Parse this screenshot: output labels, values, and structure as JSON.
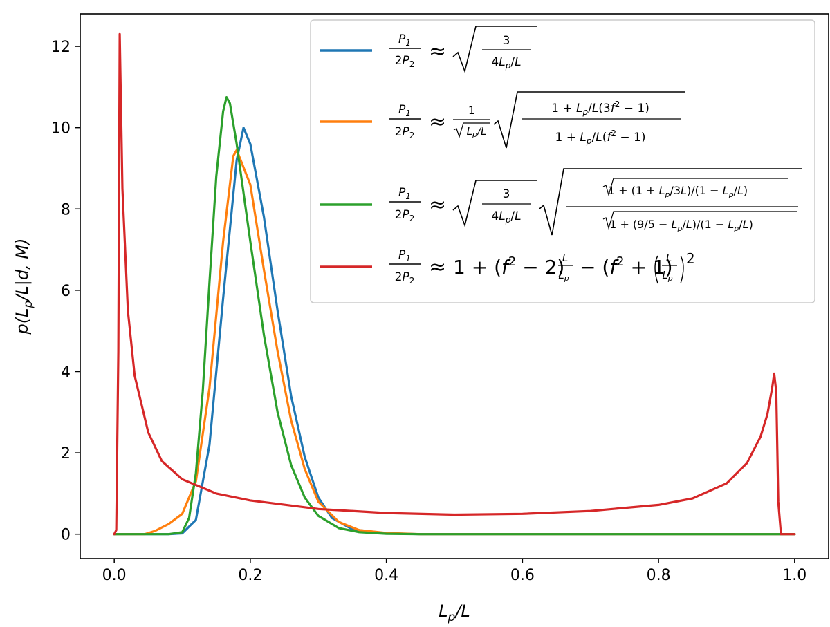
{
  "chart_data": {
    "type": "line",
    "xlabel": "L_p/L",
    "ylabel": "p(L_p/L|d, M)",
    "xlim": [
      -0.05,
      1.05
    ],
    "ylim": [
      -0.6,
      12.8
    ],
    "x_ticks": [
      "0.0",
      "0.2",
      "0.4",
      "0.6",
      "0.8",
      "1.0"
    ],
    "y_ticks": [
      "0",
      "2",
      "4",
      "6",
      "8",
      "10",
      "12"
    ],
    "grid": false,
    "legend_position": "top-right",
    "series": [
      {
        "name": "P1/2P2 ≈ √(3/(4Lp/L))",
        "color": "#1f77b4",
        "x": [
          0.0,
          0.08,
          0.1,
          0.12,
          0.14,
          0.16,
          0.18,
          0.19,
          0.2,
          0.22,
          0.24,
          0.26,
          0.28,
          0.3,
          0.32,
          0.35,
          0.4,
          0.45,
          0.5,
          1.0
        ],
        "y": [
          0,
          0,
          0.02,
          0.35,
          2.2,
          5.8,
          9.2,
          10.0,
          9.6,
          7.8,
          5.5,
          3.4,
          1.9,
          0.9,
          0.4,
          0.12,
          0.02,
          0.0,
          0.0,
          0.0
        ]
      },
      {
        "name": "P1/2P2 ≈ (1/√(Lp/L)) √((1+Lp/L(3f²−1))/(1+Lp/L(f²−1)))",
        "color": "#ff7f0e",
        "x": [
          0.0,
          0.045,
          0.06,
          0.08,
          0.1,
          0.12,
          0.14,
          0.16,
          0.175,
          0.18,
          0.2,
          0.22,
          0.24,
          0.26,
          0.28,
          0.3,
          0.33,
          0.36,
          0.4,
          0.45,
          0.5,
          1.0
        ],
        "y": [
          0,
          0,
          0.08,
          0.25,
          0.5,
          1.3,
          3.6,
          7.2,
          9.3,
          9.45,
          8.6,
          6.5,
          4.5,
          2.8,
          1.6,
          0.8,
          0.3,
          0.1,
          0.03,
          0.0,
          0.0,
          0.0
        ]
      },
      {
        "name": "P1/2P2 ≈ √(3/(4Lp/L)) √((1+√((1+Lp/3L)/(1−Lp/L)))/(1+√((9/5−Lp/L)/(1−Lp/L))))",
        "color": "#2ca02c",
        "x": [
          0.0,
          0.08,
          0.1,
          0.11,
          0.12,
          0.13,
          0.14,
          0.15,
          0.16,
          0.165,
          0.17,
          0.18,
          0.2,
          0.22,
          0.24,
          0.26,
          0.28,
          0.3,
          0.33,
          0.36,
          0.4,
          0.45,
          0.5,
          1.0
        ],
        "y": [
          0,
          0,
          0.05,
          0.4,
          1.5,
          3.5,
          6.2,
          8.8,
          10.4,
          10.75,
          10.6,
          9.6,
          7.2,
          4.9,
          3.0,
          1.7,
          0.9,
          0.45,
          0.15,
          0.05,
          0.01,
          0.0,
          0.0,
          0.0
        ]
      },
      {
        "name": "P1/2P2 ≈ 1 + (f²−2)L/Lp − (f²+1)(L/Lp)²",
        "color": "#d62728",
        "x": [
          0.0,
          0.003,
          0.006,
          0.008,
          0.012,
          0.02,
          0.03,
          0.05,
          0.07,
          0.1,
          0.15,
          0.2,
          0.3,
          0.4,
          0.5,
          0.6,
          0.7,
          0.8,
          0.85,
          0.9,
          0.93,
          0.95,
          0.96,
          0.967,
          0.97,
          0.973,
          0.976,
          0.98,
          1.0
        ],
        "y": [
          0,
          0.1,
          4.5,
          12.3,
          8.5,
          5.5,
          3.9,
          2.5,
          1.8,
          1.35,
          1.0,
          0.83,
          0.62,
          0.52,
          0.48,
          0.5,
          0.57,
          0.72,
          0.88,
          1.25,
          1.75,
          2.4,
          2.95,
          3.6,
          3.95,
          3.5,
          0.8,
          0.0,
          0.0
        ]
      }
    ]
  }
}
